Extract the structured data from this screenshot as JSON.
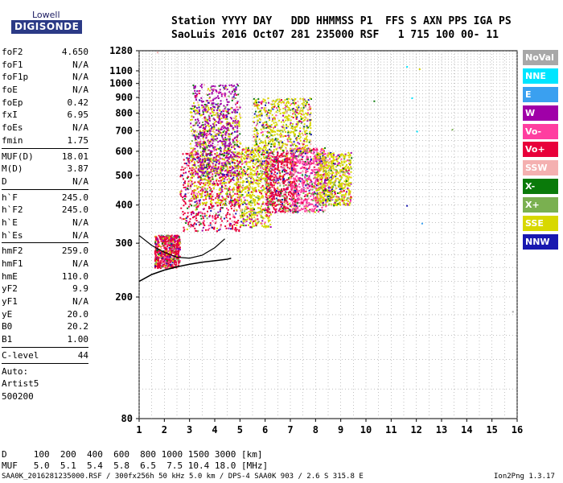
{
  "logo": {
    "line1": "Lowell",
    "line2": "DIGISONDE"
  },
  "header": {
    "line1": "Station YYYY DAY   DDD HHMMSS P1  FFS S AXN PPS IGA PS",
    "line2": "SaoLuis 2016 Oct07 281 235000 RSF   1 715 100 00- 11"
  },
  "params": [
    {
      "name": "foF2",
      "value": "4.650"
    },
    {
      "name": "foF1",
      "value": "N/A"
    },
    {
      "name": "foF1p",
      "value": "N/A"
    },
    {
      "name": "foE",
      "value": "N/A"
    },
    {
      "name": "foEp",
      "value": "0.42"
    },
    {
      "name": "fxI",
      "value": "6.95"
    },
    {
      "name": "foEs",
      "value": "N/A"
    },
    {
      "name": "fmin",
      "value": "1.75"
    },
    {
      "divider": true
    },
    {
      "name": "MUF(D)",
      "value": "18.01"
    },
    {
      "name": "M(D)",
      "value": "3.87"
    },
    {
      "name": "D",
      "value": "N/A"
    },
    {
      "divider": true
    },
    {
      "name": "h`F",
      "value": "245.0"
    },
    {
      "name": "h`F2",
      "value": "245.0"
    },
    {
      "name": "h`E",
      "value": "N/A"
    },
    {
      "name": "h`Es",
      "value": "N/A"
    },
    {
      "divider": true
    },
    {
      "name": "hmF2",
      "value": "259.0"
    },
    {
      "name": "hmF1",
      "value": "N/A"
    },
    {
      "name": "hmE",
      "value": "110.0"
    },
    {
      "name": "yF2",
      "value": "9.9"
    },
    {
      "name": "yF1",
      "value": "N/A"
    },
    {
      "name": "yE",
      "value": "20.0"
    },
    {
      "name": "B0",
      "value": "20.2"
    },
    {
      "name": "B1",
      "value": "1.00"
    },
    {
      "divider": true
    },
    {
      "name": "C-level",
      "value": "44"
    },
    {
      "divider": true
    },
    {
      "name": "Auto:",
      "value": ""
    },
    {
      "name": "Artist5",
      "value": ""
    },
    {
      "name": "500200",
      "value": ""
    }
  ],
  "bottom": {
    "d_row": "D     100  200  400  600  800 1000 1500 3000 [km]",
    "muf_row": "MUF   5.0  5.1  5.4  5.8  6.5  7.5 10.4 18.0 [MHz]"
  },
  "footer": {
    "left": "SAA0K_2016281235000.RSF / 300fx256h 50 kHz 5.0 km / DPS-4 SAA0K 903 / 2.6 S 315.8 E",
    "right": "Ion2Png 1.3.17"
  },
  "legend": [
    {
      "label": "NoVal",
      "color": "#a8a8a8"
    },
    {
      "label": "NNE",
      "color": "#00e5ff"
    },
    {
      "label": "E",
      "color": "#3aa0f0"
    },
    {
      "label": "W",
      "color": "#a000a8"
    },
    {
      "label": "Vo-",
      "color": "#ff3ea0"
    },
    {
      "label": "Vo+",
      "color": "#e8003a"
    },
    {
      "label": "SSW",
      "color": "#f4b0b0"
    },
    {
      "label": "X-",
      "color": "#0a7a0a"
    },
    {
      "label": "X+",
      "color": "#7ab050"
    },
    {
      "label": "SSE",
      "color": "#d8d800"
    },
    {
      "label": "NNW",
      "color": "#1818b0"
    }
  ],
  "chart_data": {
    "type": "scatter",
    "xlim": [
      1,
      16
    ],
    "ylim": [
      80,
      1280
    ],
    "ylog": true,
    "xticks": [
      1,
      2,
      3,
      4,
      5,
      6,
      7,
      8,
      9,
      10,
      11,
      12,
      13,
      14,
      15,
      16
    ],
    "yticks": [
      80,
      200,
      300,
      400,
      500,
      600,
      700,
      800,
      900,
      1000,
      1100,
      1280
    ],
    "grid": true,
    "trace": {
      "name": "profile",
      "x": [
        1.0,
        1.5,
        2.0,
        2.5,
        3.0,
        3.5,
        4.0,
        4.5,
        4.65
      ],
      "y": [
        225,
        237,
        245,
        251,
        256,
        260,
        263,
        266,
        268
      ]
    },
    "trace2": {
      "x": [
        1.0,
        1.5,
        2.0,
        2.5,
        3.0,
        3.5,
        4.0,
        4.4
      ],
      "y": [
        318,
        295,
        280,
        270,
        268,
        274,
        290,
        310
      ]
    },
    "clusters": [
      {
        "x": [
          1.6,
          2.6
        ],
        "y": [
          250,
          320
        ],
        "color": "Vo+"
      },
      {
        "x": [
          2.6,
          5.0
        ],
        "y": [
          330,
          600
        ],
        "color": "Vo+"
      },
      {
        "x": [
          3.0,
          5.0
        ],
        "y": [
          400,
          850
        ],
        "color": "SSE"
      },
      {
        "x": [
          3.1,
          4.9
        ],
        "y": [
          500,
          1000
        ],
        "color": "W"
      },
      {
        "x": [
          5.0,
          6.2
        ],
        "y": [
          340,
          620
        ],
        "color": "SSE"
      },
      {
        "x": [
          6.0,
          7.2
        ],
        "y": [
          380,
          600
        ],
        "color": "Vo+"
      },
      {
        "x": [
          7.0,
          8.4
        ],
        "y": [
          380,
          620
        ],
        "color": "Vo-"
      },
      {
        "x": [
          8.0,
          9.4
        ],
        "y": [
          400,
          600
        ],
        "color": "SSE"
      },
      {
        "x": [
          5.5,
          7.8
        ],
        "y": [
          600,
          900
        ],
        "color": "SSE"
      }
    ]
  }
}
